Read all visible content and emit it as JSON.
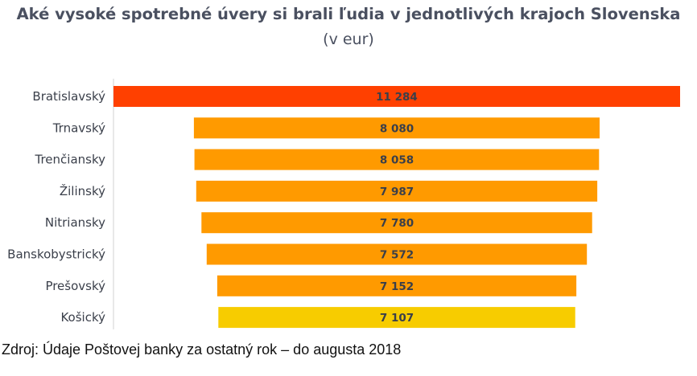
{
  "chart_data": {
    "type": "bar",
    "orientation": "horizontal",
    "alignment": "centered",
    "title": "Aké vysoké spotrebné úvery si brali ľudia v jednotlivých krajoch Slovenska",
    "subtitle": "(v eur)",
    "xlabel": "",
    "ylabel": "",
    "categories": [
      "Bratislavský",
      "Trnavský",
      "Trenčiansky",
      "Žilinský",
      "Nitriansky",
      "Banskobystrický",
      "Prešovský",
      "Košický"
    ],
    "values": [
      11284,
      8080,
      8058,
      7987,
      7780,
      7572,
      7152,
      7107
    ],
    "value_labels": [
      "11 284",
      "8 080",
      "8 058",
      "7 987",
      "7 780",
      "7 572",
      "7 152",
      "7 107"
    ],
    "colors": [
      "#ff4000",
      "#ff9a00",
      "#ff9a00",
      "#ff9a00",
      "#ff9a00",
      "#ff9a00",
      "#ff9a00",
      "#f7cc00"
    ],
    "legend": "none",
    "grid": false
  },
  "source": "Zdroj: Údaje Poštovej banky za ostatný rok – do augusta 2018"
}
